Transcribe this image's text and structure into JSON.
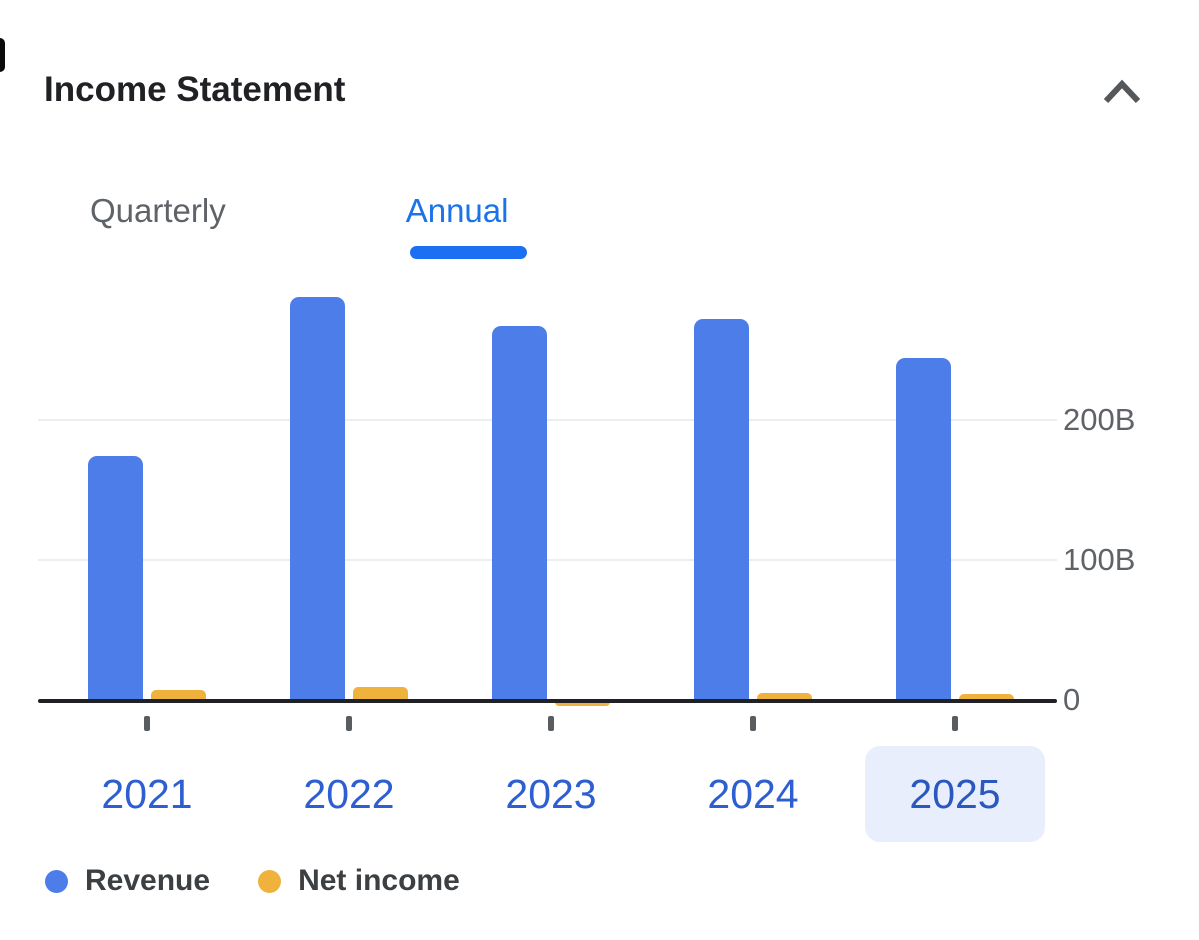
{
  "header": {
    "title": "Income Statement",
    "collapse_icon": "chevron-up-icon"
  },
  "tabs": [
    {
      "label": "Quarterly",
      "active": false
    },
    {
      "label": "Annual",
      "active": true
    }
  ],
  "chart_data": {
    "type": "bar",
    "categories": [
      "2021",
      "2022",
      "2023",
      "2024",
      "2025"
    ],
    "series": [
      {
        "name": "Revenue",
        "color": "#4d7de9",
        "values": [
          174,
          288,
          267,
          272,
          244
        ]
      },
      {
        "name": "Net income",
        "color": "#efb33d",
        "values": [
          7,
          9,
          -3,
          5,
          4
        ]
      }
    ],
    "unit": "billions",
    "y_ticks": [
      {
        "label": "200B",
        "value": 200
      },
      {
        "label": "100B",
        "value": 100
      },
      {
        "label": "0",
        "value": 0
      }
    ],
    "ylim": [
      0,
      300
    ],
    "grid": "horizontal",
    "y_axis_side": "right",
    "legend_position": "bottom",
    "selected_category": "2025"
  },
  "legend": [
    {
      "label": "Revenue",
      "color": "#4d7de9"
    },
    {
      "label": "Net income",
      "color": "#efb33d"
    }
  ],
  "colors": {
    "accent_blue": "#1a73e8",
    "tab_underline": "#1a6ff3",
    "bar_blue": "#4d7de9",
    "bar_yellow": "#efb33d",
    "year_label_blue": "#2d5ed2",
    "selected_year_background": "#e8eefb",
    "axis_line": "#202124",
    "muted_text": "#5f6368",
    "legend_text": "#3c4043",
    "gridline": "#eceef1",
    "title_text": "#202124"
  }
}
